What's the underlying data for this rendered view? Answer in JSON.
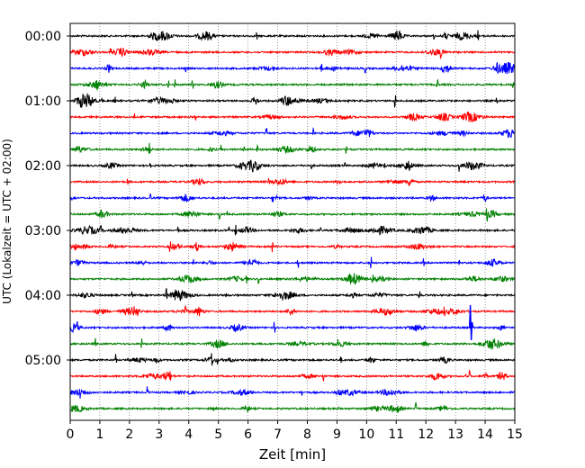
{
  "chart_data": {
    "type": "line",
    "title": "",
    "xlabel": "Zeit  [min]",
    "ylabel": "UTC (Lokalzeit = UTC + 02:00)",
    "xlim": [
      0,
      15
    ],
    "x_ticks": [
      "0",
      "1",
      "2",
      "3",
      "4",
      "5",
      "6",
      "7",
      "8",
      "9",
      "10",
      "11",
      "12",
      "13",
      "14",
      "15"
    ],
    "y_tick_labels": [
      "00:00",
      "01:00",
      "02:00",
      "03:00",
      "04:00",
      "05:00"
    ],
    "grid": "vertical dotted",
    "trace_interval_min": 15,
    "trace_colors": [
      "#000000",
      "#ff0000",
      "#0000ff",
      "#008000"
    ],
    "series": [
      {
        "start": "00:00",
        "color": "#000000"
      },
      {
        "start": "00:15",
        "color": "#ff0000"
      },
      {
        "start": "00:30",
        "color": "#0000ff"
      },
      {
        "start": "00:45",
        "color": "#008000"
      },
      {
        "start": "01:00",
        "color": "#000000"
      },
      {
        "start": "01:15",
        "color": "#ff0000"
      },
      {
        "start": "01:30",
        "color": "#0000ff"
      },
      {
        "start": "01:45",
        "color": "#008000"
      },
      {
        "start": "02:00",
        "color": "#000000"
      },
      {
        "start": "02:15",
        "color": "#ff0000"
      },
      {
        "start": "02:30",
        "color": "#0000ff"
      },
      {
        "start": "02:45",
        "color": "#008000"
      },
      {
        "start": "03:00",
        "color": "#000000"
      },
      {
        "start": "03:15",
        "color": "#ff0000"
      },
      {
        "start": "03:30",
        "color": "#0000ff"
      },
      {
        "start": "03:45",
        "color": "#008000"
      },
      {
        "start": "04:00",
        "color": "#000000"
      },
      {
        "start": "04:15",
        "color": "#ff0000"
      },
      {
        "start": "04:30",
        "color": "#0000ff"
      },
      {
        "start": "04:45",
        "color": "#008000"
      },
      {
        "start": "05:00",
        "color": "#000000"
      },
      {
        "start": "05:15",
        "color": "#ff0000"
      },
      {
        "start": "05:30",
        "color": "#0000ff"
      },
      {
        "start": "05:45",
        "color": "#008000"
      }
    ]
  }
}
